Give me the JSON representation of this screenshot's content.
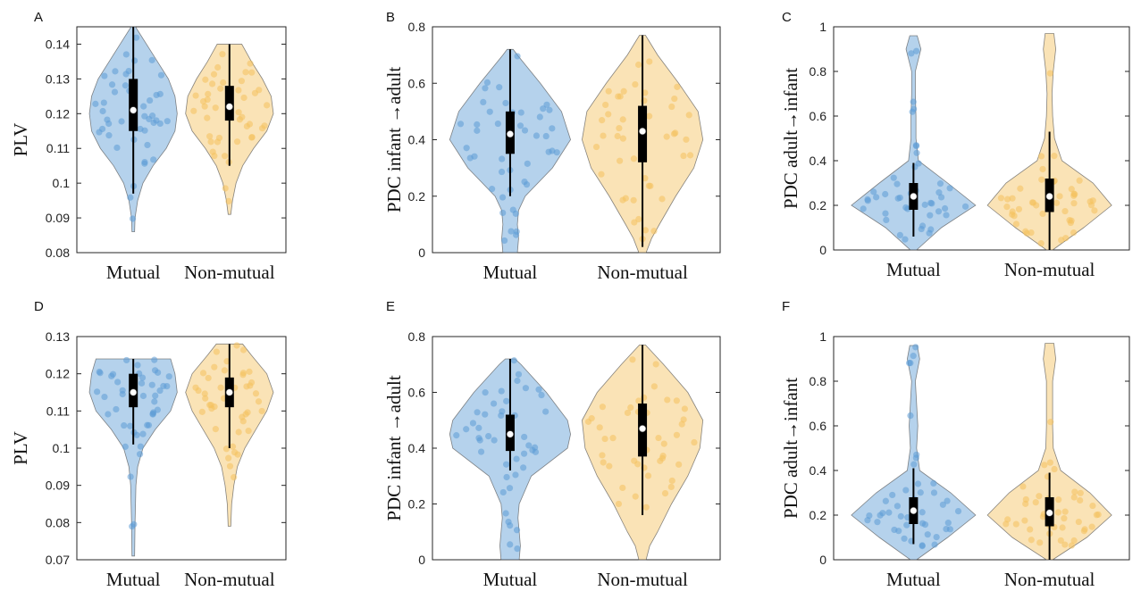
{
  "colors": {
    "mutual": "#5b9bd5",
    "non_mutual": "#f4c15d",
    "box": "#000000",
    "median": "#ffffff"
  },
  "chart_data": [
    {
      "type": "violin",
      "panel": "A",
      "ylabel": "PLV",
      "ylim": [
        0.08,
        0.145
      ],
      "yticks": [
        0.08,
        0.09,
        0.1,
        0.11,
        0.12,
        0.13,
        0.14
      ],
      "ytick_labels": [
        "0.08",
        "0.09",
        "0.1",
        "0.11",
        "0.12",
        "0.13",
        "0.14"
      ],
      "categories": [
        "Mutual",
        "Non-mutual"
      ],
      "series": [
        {
          "category": "Mutual",
          "min": 0.086,
          "max": 0.145,
          "q1": 0.115,
          "median": 0.121,
          "q3": 0.13,
          "whisker_low": 0.097,
          "whisker_high": 0.145,
          "density": [
            [
              0.086,
              0.03
            ],
            [
              0.09,
              0.04
            ],
            [
              0.095,
              0.1
            ],
            [
              0.1,
              0.22
            ],
            [
              0.105,
              0.45
            ],
            [
              0.11,
              0.75
            ],
            [
              0.115,
              0.95
            ],
            [
              0.12,
              1.0
            ],
            [
              0.125,
              0.95
            ],
            [
              0.13,
              0.8
            ],
            [
              0.135,
              0.55
            ],
            [
              0.14,
              0.3
            ],
            [
              0.145,
              0.05
            ]
          ]
        },
        {
          "category": "Non-mutual",
          "min": 0.091,
          "max": 0.14,
          "q1": 0.118,
          "median": 0.122,
          "q3": 0.128,
          "whisker_low": 0.105,
          "whisker_high": 0.14,
          "density": [
            [
              0.091,
              0.03
            ],
            [
              0.095,
              0.07
            ],
            [
              0.1,
              0.15
            ],
            [
              0.105,
              0.3
            ],
            [
              0.11,
              0.55
            ],
            [
              0.115,
              0.85
            ],
            [
              0.12,
              1.0
            ],
            [
              0.125,
              0.95
            ],
            [
              0.13,
              0.75
            ],
            [
              0.135,
              0.5
            ],
            [
              0.14,
              0.28
            ]
          ]
        }
      ]
    },
    {
      "type": "violin",
      "panel": "B",
      "ylabel": "PDC infant →adult",
      "ylim": [
        0,
        0.8
      ],
      "yticks": [
        0,
        0.2,
        0.4,
        0.6,
        0.8
      ],
      "ytick_labels": [
        "0",
        "0.2",
        "0.4",
        "0.6",
        "0.8"
      ],
      "categories": [
        "Mutual",
        "Non-mutual"
      ],
      "series": [
        {
          "category": "Mutual",
          "min": 0,
          "max": 0.72,
          "q1": 0.35,
          "median": 0.42,
          "q3": 0.5,
          "whisker_low": 0.2,
          "whisker_high": 0.72,
          "density": [
            [
              0,
              0.12
            ],
            [
              0.05,
              0.14
            ],
            [
              0.1,
              0.12
            ],
            [
              0.15,
              0.14
            ],
            [
              0.2,
              0.25
            ],
            [
              0.3,
              0.7
            ],
            [
              0.4,
              1.0
            ],
            [
              0.5,
              0.85
            ],
            [
              0.6,
              0.5
            ],
            [
              0.7,
              0.12
            ],
            [
              0.72,
              0.05
            ]
          ]
        },
        {
          "category": "Non-mutual",
          "min": 0,
          "max": 0.77,
          "q1": 0.32,
          "median": 0.43,
          "q3": 0.52,
          "whisker_low": 0.02,
          "whisker_high": 0.77,
          "density": [
            [
              0,
              0.06
            ],
            [
              0.05,
              0.15
            ],
            [
              0.1,
              0.28
            ],
            [
              0.2,
              0.55
            ],
            [
              0.3,
              0.85
            ],
            [
              0.4,
              1.0
            ],
            [
              0.5,
              0.92
            ],
            [
              0.6,
              0.6
            ],
            [
              0.7,
              0.25
            ],
            [
              0.77,
              0.05
            ]
          ]
        }
      ]
    },
    {
      "type": "violin",
      "panel": "C",
      "ylabel": "PDC adult→infant",
      "ylim": [
        0,
        1
      ],
      "yticks": [
        0,
        0.2,
        0.4,
        0.6,
        0.8,
        1
      ],
      "ytick_labels": [
        "0",
        "0.2",
        "0.4",
        "0.6",
        "0.8",
        "1"
      ],
      "categories": [
        "Mutual",
        "Non-mutual"
      ],
      "series": [
        {
          "category": "Mutual",
          "min": 0,
          "max": 0.96,
          "q1": 0.18,
          "median": 0.24,
          "q3": 0.3,
          "whisker_low": 0.06,
          "whisker_high": 0.39,
          "density": [
            [
              0,
              0.05
            ],
            [
              0.1,
              0.45
            ],
            [
              0.2,
              1.0
            ],
            [
              0.3,
              0.55
            ],
            [
              0.4,
              0.08
            ],
            [
              0.5,
              0.04
            ],
            [
              0.6,
              0.04
            ],
            [
              0.7,
              0.03
            ],
            [
              0.8,
              0.03
            ],
            [
              0.9,
              0.12
            ],
            [
              0.96,
              0.06
            ]
          ]
        },
        {
          "category": "Non-mutual",
          "min": 0,
          "max": 0.97,
          "q1": 0.17,
          "median": 0.24,
          "q3": 0.32,
          "whisker_low": 0.0,
          "whisker_high": 0.53,
          "density": [
            [
              0,
              0.05
            ],
            [
              0.1,
              0.55
            ],
            [
              0.2,
              1.0
            ],
            [
              0.3,
              0.7
            ],
            [
              0.4,
              0.2
            ],
            [
              0.5,
              0.08
            ],
            [
              0.6,
              0.05
            ],
            [
              0.7,
              0.04
            ],
            [
              0.8,
              0.06
            ],
            [
              0.9,
              0.1
            ],
            [
              0.97,
              0.07
            ]
          ]
        }
      ]
    },
    {
      "type": "violin",
      "panel": "D",
      "ylabel": "PLV",
      "ylim": [
        0.07,
        0.13
      ],
      "yticks": [
        0.07,
        0.08,
        0.09,
        0.1,
        0.11,
        0.12,
        0.13
      ],
      "ytick_labels": [
        "0.07",
        "0.08",
        "0.09",
        "0.1",
        "0.11",
        "0.12",
        "0.13"
      ],
      "categories": [
        "Mutual",
        "Non-mutual"
      ],
      "series": [
        {
          "category": "Mutual",
          "min": 0.071,
          "max": 0.124,
          "q1": 0.111,
          "median": 0.115,
          "q3": 0.12,
          "whisker_low": 0.101,
          "whisker_high": 0.124,
          "density": [
            [
              0.071,
              0.03
            ],
            [
              0.08,
              0.04
            ],
            [
              0.09,
              0.06
            ],
            [
              0.095,
              0.1
            ],
            [
              0.1,
              0.22
            ],
            [
              0.105,
              0.5
            ],
            [
              0.11,
              0.85
            ],
            [
              0.115,
              1.0
            ],
            [
              0.12,
              0.95
            ],
            [
              0.124,
              0.85
            ]
          ]
        },
        {
          "category": "Non-mutual",
          "min": 0.079,
          "max": 0.128,
          "q1": 0.111,
          "median": 0.115,
          "q3": 0.119,
          "whisker_low": 0.1,
          "whisker_high": 0.128,
          "density": [
            [
              0.079,
              0.03
            ],
            [
              0.085,
              0.05
            ],
            [
              0.09,
              0.1
            ],
            [
              0.095,
              0.18
            ],
            [
              0.1,
              0.35
            ],
            [
              0.105,
              0.6
            ],
            [
              0.11,
              0.85
            ],
            [
              0.115,
              1.0
            ],
            [
              0.12,
              0.85
            ],
            [
              0.125,
              0.5
            ],
            [
              0.128,
              0.3
            ]
          ]
        }
      ]
    },
    {
      "type": "violin",
      "panel": "E",
      "ylabel": "PDC infant →adult",
      "ylim": [
        0,
        0.8
      ],
      "yticks": [
        0,
        0.2,
        0.4,
        0.6,
        0.8
      ],
      "ytick_labels": [
        "0",
        "0.2",
        "0.4",
        "0.6",
        "0.8"
      ],
      "categories": [
        "Mutual",
        "Non-mutual"
      ],
      "series": [
        {
          "category": "Mutual",
          "min": 0,
          "max": 0.72,
          "q1": 0.39,
          "median": 0.45,
          "q3": 0.52,
          "whisker_low": 0.32,
          "whisker_high": 0.72,
          "density": [
            [
              0,
              0.15
            ],
            [
              0.05,
              0.17
            ],
            [
              0.1,
              0.15
            ],
            [
              0.15,
              0.13
            ],
            [
              0.2,
              0.15
            ],
            [
              0.3,
              0.35
            ],
            [
              0.4,
              0.95
            ],
            [
              0.45,
              1.0
            ],
            [
              0.5,
              0.95
            ],
            [
              0.6,
              0.6
            ],
            [
              0.7,
              0.18
            ],
            [
              0.72,
              0.08
            ]
          ]
        },
        {
          "category": "Non-mutual",
          "min": 0,
          "max": 0.77,
          "q1": 0.37,
          "median": 0.47,
          "q3": 0.56,
          "whisker_low": 0.16,
          "whisker_high": 0.77,
          "density": [
            [
              0,
              0.06
            ],
            [
              0.05,
              0.12
            ],
            [
              0.1,
              0.25
            ],
            [
              0.2,
              0.48
            ],
            [
              0.3,
              0.75
            ],
            [
              0.4,
              0.95
            ],
            [
              0.5,
              1.0
            ],
            [
              0.6,
              0.75
            ],
            [
              0.7,
              0.35
            ],
            [
              0.77,
              0.05
            ]
          ]
        }
      ]
    },
    {
      "type": "violin",
      "panel": "F",
      "ylabel": "PDC adult→infant",
      "ylim": [
        0,
        1
      ],
      "yticks": [
        0,
        0.2,
        0.4,
        0.6,
        0.8,
        1
      ],
      "ytick_labels": [
        "0",
        "0.2",
        "0.4",
        "0.6",
        "0.8",
        "1"
      ],
      "categories": [
        "Mutual",
        "Non-mutual"
      ],
      "series": [
        {
          "category": "Mutual",
          "min": 0,
          "max": 0.96,
          "q1": 0.16,
          "median": 0.22,
          "q3": 0.28,
          "whisker_low": 0.07,
          "whisker_high": 0.41,
          "density": [
            [
              0,
              0.05
            ],
            [
              0.1,
              0.55
            ],
            [
              0.2,
              1.0
            ],
            [
              0.3,
              0.6
            ],
            [
              0.4,
              0.1
            ],
            [
              0.5,
              0.05
            ],
            [
              0.6,
              0.07
            ],
            [
              0.7,
              0.05
            ],
            [
              0.8,
              0.03
            ],
            [
              0.9,
              0.1
            ],
            [
              0.96,
              0.06
            ]
          ]
        },
        {
          "category": "Non-mutual",
          "min": 0,
          "max": 0.97,
          "q1": 0.15,
          "median": 0.21,
          "q3": 0.28,
          "whisker_low": 0.0,
          "whisker_high": 0.39,
          "density": [
            [
              0,
              0.05
            ],
            [
              0.1,
              0.6
            ],
            [
              0.2,
              1.0
            ],
            [
              0.3,
              0.65
            ],
            [
              0.4,
              0.18
            ],
            [
              0.5,
              0.06
            ],
            [
              0.6,
              0.05
            ],
            [
              0.7,
              0.05
            ],
            [
              0.8,
              0.05
            ],
            [
              0.9,
              0.1
            ],
            [
              0.97,
              0.07
            ]
          ]
        }
      ]
    }
  ]
}
